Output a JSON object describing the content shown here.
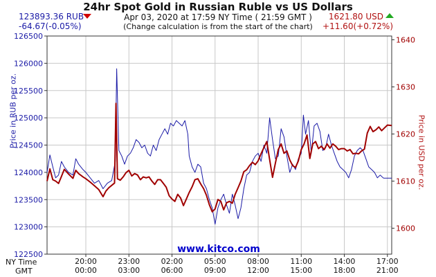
{
  "header": {
    "title": "24hr Spot Gold in Russian Ruble vs US Dollars",
    "subtitle": "Apr 03, 2020 at 17:59 NY Time ( 21:59 GMT )",
    "note": "(Change calculation is from the start of the chart)",
    "rub_price": "123893.36 RUB",
    "rub_change": "-64.67(-0.05%)",
    "usd_price": "1621.80 USD",
    "usd_change": "+11.60(+0.72%)",
    "rub_direction": "down",
    "usd_direction": "up"
  },
  "timezones": {
    "ny": "NY Time",
    "gmt": "GMT"
  },
  "chart_data": {
    "type": "line",
    "watermark": "www.kitco.com",
    "colors": {
      "rub": "#1a1aa6",
      "usd": "#a00000",
      "down_arrow": "#d10000",
      "up_arrow": "#22aa22",
      "grid": "#c8c8c8"
    },
    "grid": true,
    "x": {
      "range": [
        17.3,
        41.3
      ],
      "ticks": [
        {
          "pos": 20,
          "ny": "20:00",
          "gmt": "00:00"
        },
        {
          "pos": 23,
          "ny": "23:00",
          "gmt": "03:00"
        },
        {
          "pos": 26,
          "ny": "02:00",
          "gmt": "06:00"
        },
        {
          "pos": 29,
          "ny": "05:00",
          "gmt": "09:00"
        },
        {
          "pos": 32,
          "ny": "08:00",
          "gmt": "12:00"
        },
        {
          "pos": 35,
          "ny": "11:00",
          "gmt": "15:00"
        },
        {
          "pos": 38,
          "ny": "14:00",
          "gmt": "18:00"
        },
        {
          "pos": 41,
          "ny": "17:00",
          "gmt": "21:00"
        }
      ]
    },
    "y_left": {
      "label": "Price in RUB per oz.",
      "range": [
        122500,
        126500
      ],
      "ticks": [
        122500,
        123000,
        123500,
        124000,
        124500,
        125000,
        125500,
        126000,
        126500
      ]
    },
    "y_right": {
      "label": "Price in USD per oz.",
      "range": [
        1594.5,
        1640.8
      ],
      "ticks": [
        1600,
        1610,
        1620,
        1630,
        1640
      ]
    },
    "series": [
      {
        "name": "RUB",
        "axis": "left",
        "points": [
          [
            17.3,
            124000
          ],
          [
            17.5,
            124320
          ],
          [
            17.7,
            124100
          ],
          [
            17.9,
            123900
          ],
          [
            18.1,
            123950
          ],
          [
            18.3,
            124200
          ],
          [
            18.5,
            124100
          ],
          [
            18.8,
            124000
          ],
          [
            19.1,
            123950
          ],
          [
            19.3,
            124250
          ],
          [
            19.5,
            124150
          ],
          [
            19.8,
            124050
          ],
          [
            20.0,
            124000
          ],
          [
            20.3,
            123900
          ],
          [
            20.6,
            123800
          ],
          [
            20.9,
            123850
          ],
          [
            21.2,
            123700
          ],
          [
            21.5,
            123800
          ],
          [
            21.8,
            123850
          ],
          [
            22.05,
            124200
          ],
          [
            22.15,
            125900
          ],
          [
            22.3,
            124400
          ],
          [
            22.5,
            124300
          ],
          [
            22.7,
            124150
          ],
          [
            22.9,
            124300
          ],
          [
            23.1,
            124350
          ],
          [
            23.3,
            124450
          ],
          [
            23.5,
            124600
          ],
          [
            23.7,
            124550
          ],
          [
            23.9,
            124450
          ],
          [
            24.1,
            124500
          ],
          [
            24.3,
            124350
          ],
          [
            24.5,
            124300
          ],
          [
            24.7,
            124500
          ],
          [
            24.9,
            124400
          ],
          [
            25.1,
            124600
          ],
          [
            25.3,
            124700
          ],
          [
            25.5,
            124800
          ],
          [
            25.7,
            124700
          ],
          [
            25.9,
            124900
          ],
          [
            26.1,
            124850
          ],
          [
            26.3,
            124950
          ],
          [
            26.5,
            124900
          ],
          [
            26.7,
            124850
          ],
          [
            26.9,
            124950
          ],
          [
            27.1,
            124700
          ],
          [
            27.2,
            124300
          ],
          [
            27.4,
            124100
          ],
          [
            27.6,
            124000
          ],
          [
            27.8,
            124150
          ],
          [
            28.0,
            124100
          ],
          [
            28.2,
            123800
          ],
          [
            28.4,
            123700
          ],
          [
            28.6,
            123500
          ],
          [
            28.8,
            123350
          ],
          [
            29.0,
            123050
          ],
          [
            29.2,
            123350
          ],
          [
            29.4,
            123500
          ],
          [
            29.6,
            123600
          ],
          [
            29.8,
            123400
          ],
          [
            30.0,
            123250
          ],
          [
            30.2,
            123600
          ],
          [
            30.4,
            123400
          ],
          [
            30.6,
            123150
          ],
          [
            30.8,
            123350
          ],
          [
            31.0,
            123700
          ],
          [
            31.2,
            123950
          ],
          [
            31.4,
            124000
          ],
          [
            31.6,
            124200
          ],
          [
            31.8,
            124300
          ],
          [
            32.0,
            124350
          ],
          [
            32.2,
            124200
          ],
          [
            32.4,
            124500
          ],
          [
            32.6,
            124350
          ],
          [
            32.8,
            125000
          ],
          [
            33.0,
            124600
          ],
          [
            33.2,
            124250
          ],
          [
            33.4,
            124300
          ],
          [
            33.6,
            124800
          ],
          [
            33.8,
            124650
          ],
          [
            34.0,
            124300
          ],
          [
            34.2,
            124000
          ],
          [
            34.4,
            124150
          ],
          [
            34.6,
            124050
          ],
          [
            34.8,
            124250
          ],
          [
            35.0,
            124350
          ],
          [
            35.15,
            125050
          ],
          [
            35.3,
            124700
          ],
          [
            35.5,
            124950
          ],
          [
            35.7,
            124350
          ],
          [
            35.9,
            124850
          ],
          [
            36.1,
            124900
          ],
          [
            36.3,
            124750
          ],
          [
            36.5,
            124400
          ],
          [
            36.7,
            124450
          ],
          [
            36.9,
            124700
          ],
          [
            37.1,
            124500
          ],
          [
            37.3,
            124350
          ],
          [
            37.5,
            124200
          ],
          [
            37.7,
            124100
          ],
          [
            37.9,
            124050
          ],
          [
            38.1,
            124000
          ],
          [
            38.3,
            123900
          ],
          [
            38.5,
            124050
          ],
          [
            38.7,
            124300
          ],
          [
            38.9,
            124400
          ],
          [
            39.1,
            124450
          ],
          [
            39.3,
            124400
          ],
          [
            39.5,
            124250
          ],
          [
            39.7,
            124100
          ],
          [
            39.9,
            124050
          ],
          [
            40.1,
            124000
          ],
          [
            40.3,
            123900
          ],
          [
            40.5,
            123950
          ],
          [
            40.7,
            123900
          ],
          [
            40.75,
            123893
          ],
          [
            41.3,
            123893
          ]
        ]
      },
      {
        "name": "USD",
        "axis": "right",
        "points": [
          [
            17.3,
            1610
          ],
          [
            17.5,
            1612.6
          ],
          [
            17.7,
            1610.3
          ],
          [
            17.9,
            1610.0
          ],
          [
            18.1,
            1609.5
          ],
          [
            18.3,
            1611.0
          ],
          [
            18.5,
            1612.5
          ],
          [
            18.8,
            1611.5
          ],
          [
            19.1,
            1610.6
          ],
          [
            19.3,
            1612.3
          ],
          [
            19.5,
            1611.6
          ],
          [
            19.8,
            1610.9
          ],
          [
            20.0,
            1610.5
          ],
          [
            20.3,
            1609.8
          ],
          [
            20.6,
            1609.0
          ],
          [
            20.9,
            1608.2
          ],
          [
            21.2,
            1606.7
          ],
          [
            21.4,
            1607.9
          ],
          [
            21.6,
            1608.6
          ],
          [
            21.8,
            1609.1
          ],
          [
            22.0,
            1609.6
          ],
          [
            22.1,
            1626.5
          ],
          [
            22.2,
            1610.5
          ],
          [
            22.4,
            1610.2
          ],
          [
            22.6,
            1610.9
          ],
          [
            22.8,
            1611.8
          ],
          [
            23.0,
            1612.3
          ],
          [
            23.2,
            1611.1
          ],
          [
            23.4,
            1611.6
          ],
          [
            23.6,
            1611.3
          ],
          [
            23.8,
            1610.3
          ],
          [
            24.0,
            1610.9
          ],
          [
            24.2,
            1610.7
          ],
          [
            24.4,
            1610.9
          ],
          [
            24.6,
            1610.0
          ],
          [
            24.8,
            1609.3
          ],
          [
            25.0,
            1610.3
          ],
          [
            25.2,
            1610.3
          ],
          [
            25.4,
            1609.5
          ],
          [
            25.6,
            1608.7
          ],
          [
            25.8,
            1606.9
          ],
          [
            26.0,
            1606.2
          ],
          [
            26.2,
            1605.7
          ],
          [
            26.4,
            1607.2
          ],
          [
            26.6,
            1606.4
          ],
          [
            26.8,
            1604.8
          ],
          [
            27.0,
            1606.2
          ],
          [
            27.2,
            1607.6
          ],
          [
            27.4,
            1608.8
          ],
          [
            27.6,
            1610.3
          ],
          [
            27.8,
            1610.5
          ],
          [
            28.0,
            1609.4
          ],
          [
            28.2,
            1608.4
          ],
          [
            28.4,
            1607.0
          ],
          [
            28.6,
            1605.0
          ],
          [
            28.8,
            1603.5
          ],
          [
            29.0,
            1604.1
          ],
          [
            29.2,
            1606.1
          ],
          [
            29.4,
            1605.7
          ],
          [
            29.6,
            1603.9
          ],
          [
            29.8,
            1605.4
          ],
          [
            30.0,
            1605.7
          ],
          [
            30.2,
            1605.3
          ],
          [
            30.4,
            1607.2
          ],
          [
            30.6,
            1608.6
          ],
          [
            30.8,
            1610.0
          ],
          [
            31.0,
            1612.0
          ],
          [
            31.2,
            1612.4
          ],
          [
            31.4,
            1613.3
          ],
          [
            31.6,
            1614.0
          ],
          [
            31.8,
            1613.5
          ],
          [
            32.0,
            1614.3
          ],
          [
            32.2,
            1615.8
          ],
          [
            32.4,
            1617.1
          ],
          [
            32.6,
            1618.4
          ],
          [
            32.8,
            1614.6
          ],
          [
            33.0,
            1610.8
          ],
          [
            33.2,
            1613.8
          ],
          [
            33.4,
            1616.7
          ],
          [
            33.6,
            1617.9
          ],
          [
            33.8,
            1615.9
          ],
          [
            34.0,
            1616.4
          ],
          [
            34.2,
            1614.5
          ],
          [
            34.4,
            1613.3
          ],
          [
            34.6,
            1612.9
          ],
          [
            34.8,
            1614.3
          ],
          [
            35.0,
            1616.7
          ],
          [
            35.2,
            1617.9
          ],
          [
            35.4,
            1619.8
          ],
          [
            35.6,
            1614.8
          ],
          [
            35.8,
            1617.9
          ],
          [
            36.0,
            1618.4
          ],
          [
            36.2,
            1616.9
          ],
          [
            36.4,
            1617.4
          ],
          [
            36.6,
            1616.7
          ],
          [
            36.8,
            1617.9
          ],
          [
            37.0,
            1617.0
          ],
          [
            37.2,
            1617.9
          ],
          [
            37.4,
            1617.4
          ],
          [
            37.6,
            1616.7
          ],
          [
            37.8,
            1616.9
          ],
          [
            38.0,
            1616.9
          ],
          [
            38.2,
            1616.4
          ],
          [
            38.4,
            1616.7
          ],
          [
            38.6,
            1615.8
          ],
          [
            38.8,
            1615.9
          ],
          [
            39.0,
            1615.8
          ],
          [
            39.2,
            1616.4
          ],
          [
            39.4,
            1616.8
          ],
          [
            39.6,
            1620.2
          ],
          [
            39.8,
            1621.6
          ],
          [
            40.0,
            1620.5
          ],
          [
            40.2,
            1620.9
          ],
          [
            40.4,
            1621.5
          ],
          [
            40.6,
            1620.7
          ],
          [
            40.8,
            1621.3
          ],
          [
            41.0,
            1621.9
          ],
          [
            41.3,
            1621.8
          ]
        ]
      }
    ]
  }
}
